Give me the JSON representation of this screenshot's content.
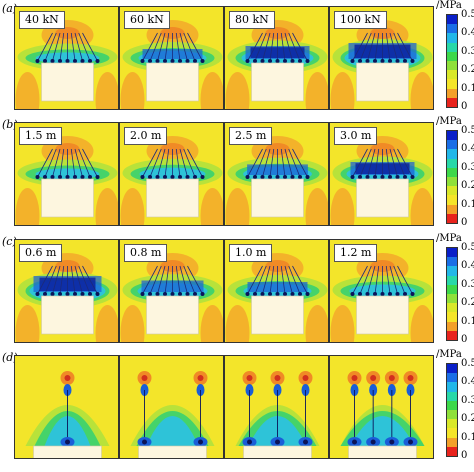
{
  "figure": {
    "rows": [
      {
        "label": "(a)",
        "panels": [
          "40 kN",
          "60 kN",
          "80 kN",
          "100 kN"
        ],
        "intensity": [
          1,
          2,
          3,
          4
        ],
        "style": "cap"
      },
      {
        "label": "(b)",
        "panels": [
          "1.5 m",
          "2.0 m",
          "2.5 m",
          "3.0 m"
        ],
        "intensity": [
          1,
          1.5,
          2.2,
          3
        ],
        "style": "cap"
      },
      {
        "label": "(c)",
        "panels": [
          "0.6 m",
          "0.8 m",
          "1.0 m",
          "1.2 m"
        ],
        "intensity": [
          4,
          2.5,
          2,
          1.6
        ],
        "style": "cap"
      },
      {
        "label": "(d)",
        "panels": [
          "",
          "",
          "",
          ""
        ],
        "intensity": [
          1,
          2,
          3,
          4
        ],
        "style": "anchors"
      }
    ],
    "colorbar": {
      "unit": "/MPa",
      "ticks": [
        "0.5",
        "0.4",
        "0.3",
        "0.2",
        "0.1",
        "0"
      ],
      "colors": [
        "#0a1fc8",
        "#1a6ee6",
        "#22b7e8",
        "#28d8a8",
        "#3dd84a",
        "#8fe03a",
        "#d9e82a",
        "#f5e52a",
        "#f3a02a",
        "#e8231d"
      ]
    },
    "field_colors": {
      "background": "#f3e52a",
      "orange": "#f3b22a",
      "light_green": "#b8e23a",
      "green": "#45d36a",
      "cyan": "#2ec3d8",
      "blue": "#1a5ed8",
      "deep_blue": "#0a1c9c",
      "cap": "#fdf6df"
    }
  }
}
